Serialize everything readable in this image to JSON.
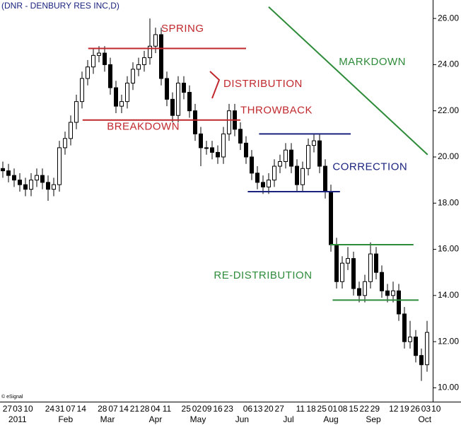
{
  "chart_data": {
    "type": "candlestick",
    "title": "(DNR - DENBURY RES INC,D)",
    "credit": "© eSignal",
    "ylim": [
      9.4,
      26.8
    ],
    "yticks": [
      {
        "value": 10,
        "label": "10.00"
      },
      {
        "value": 12,
        "label": "12.00"
      },
      {
        "value": 14,
        "label": "14.00"
      },
      {
        "value": 16,
        "label": "16.00"
      },
      {
        "value": 18,
        "label": "18.00"
      },
      {
        "value": 20,
        "label": "20.00"
      },
      {
        "value": 22,
        "label": "22.00"
      },
      {
        "value": 24,
        "label": "24.00"
      },
      {
        "value": 26,
        "label": "26.00"
      }
    ],
    "open": [
      19.5,
      19.4,
      19.2,
      19.0,
      18.8,
      18.6,
      19.0,
      19.2,
      18.9,
      18.6,
      18.8,
      20.4,
      20.8,
      21.5,
      22.4,
      23.4,
      23.9,
      24.4,
      24.5,
      24.0,
      23.0,
      22.2,
      22.4,
      23.2,
      23.8,
      24.0,
      24.3,
      24.8,
      25.3,
      23.4,
      22.5,
      21.8,
      23.2,
      22.8,
      22.0,
      21.0,
      20.4,
      20.4,
      20.2,
      20.0,
      21.0,
      22.0,
      21.2,
      20.6,
      20.0,
      19.3,
      18.9,
      18.7,
      19.0,
      19.6,
      19.8,
      20.3,
      19.6,
      18.8,
      19.5,
      20.5,
      20.7,
      19.6,
      18.5,
      16.2,
      14.6,
      15.4,
      15.6,
      14.3,
      14.0,
      14.6,
      15.8,
      15.0,
      14.2,
      14.0,
      14.2,
      13.2,
      12.0,
      12.2,
      11.4,
      11.0
    ],
    "high": [
      19.8,
      19.7,
      19.5,
      19.3,
      19.1,
      19.3,
      19.5,
      19.5,
      19.2,
      19.1,
      20.7,
      21.1,
      21.8,
      22.7,
      23.7,
      24.2,
      24.7,
      24.8,
      24.8,
      24.3,
      23.3,
      22.7,
      23.5,
      24.1,
      24.3,
      24.6,
      26.0,
      25.6,
      25.6,
      23.7,
      22.8,
      23.5,
      23.5,
      23.1,
      22.3,
      21.3,
      20.7,
      20.7,
      20.5,
      21.3,
      22.3,
      22.3,
      21.5,
      20.9,
      20.3,
      19.6,
      19.2,
      19.3,
      19.9,
      20.1,
      20.6,
      20.6,
      19.9,
      19.8,
      20.8,
      21.0,
      21.0,
      19.9,
      18.8,
      16.5,
      15.7,
      16.1,
      15.9,
      14.6,
      14.9,
      16.3,
      16.1,
      15.3,
      14.5,
      14.6,
      14.5,
      13.5,
      12.9,
      12.5,
      11.7,
      12.9
    ],
    "low": [
      19.1,
      18.9,
      18.7,
      18.5,
      18.3,
      18.3,
      18.7,
      18.6,
      18.1,
      18.3,
      18.5,
      20.1,
      20.5,
      21.2,
      22.1,
      23.1,
      23.6,
      24.1,
      23.7,
      22.7,
      21.9,
      21.9,
      22.1,
      22.9,
      23.5,
      23.7,
      24.0,
      24.5,
      23.1,
      22.2,
      21.5,
      21.5,
      22.5,
      21.7,
      20.7,
      19.6,
      20.1,
      19.9,
      19.7,
      19.7,
      20.7,
      20.9,
      20.3,
      19.7,
      19.0,
      18.6,
      18.4,
      18.4,
      18.7,
      19.3,
      19.5,
      19.3,
      18.5,
      18.5,
      19.2,
      20.2,
      19.3,
      18.2,
      15.9,
      14.3,
      14.3,
      15.1,
      14.0,
      13.7,
      13.7,
      14.3,
      14.7,
      13.9,
      13.7,
      13.7,
      12.9,
      11.7,
      11.7,
      11.1,
      10.3,
      10.7
    ],
    "close": [
      19.4,
      19.2,
      19.0,
      18.8,
      18.6,
      19.0,
      19.2,
      18.9,
      18.6,
      18.8,
      20.4,
      20.8,
      21.5,
      22.4,
      23.4,
      23.9,
      24.4,
      24.5,
      24.0,
      23.0,
      22.2,
      22.4,
      23.2,
      23.8,
      24.0,
      24.3,
      24.8,
      25.3,
      23.4,
      22.5,
      21.8,
      23.2,
      22.8,
      22.0,
      21.0,
      20.4,
      20.4,
      20.2,
      20.0,
      21.0,
      22.0,
      21.2,
      20.6,
      20.0,
      19.3,
      18.9,
      18.7,
      19.0,
      19.6,
      19.8,
      20.3,
      19.6,
      18.8,
      19.5,
      20.5,
      20.7,
      19.6,
      18.5,
      16.2,
      14.6,
      15.4,
      15.6,
      14.3,
      14.0,
      14.6,
      15.8,
      15.0,
      14.2,
      14.0,
      14.2,
      13.2,
      12.0,
      12.2,
      11.4,
      11.0,
      12.4
    ],
    "day_labels": [
      {
        "at": 0.8,
        "label": "27"
      },
      {
        "at": 2.6,
        "label": "03"
      },
      {
        "at": 4.5,
        "label": "10"
      },
      {
        "at": 8.3,
        "label": "24"
      },
      {
        "at": 10.1,
        "label": "31"
      },
      {
        "at": 12.0,
        "label": "07"
      },
      {
        "at": 13.9,
        "label": "14"
      },
      {
        "at": 17.6,
        "label": "28"
      },
      {
        "at": 19.5,
        "label": "07"
      },
      {
        "at": 21.4,
        "label": "14"
      },
      {
        "at": 23.3,
        "label": "21"
      },
      {
        "at": 25.1,
        "label": "28"
      },
      {
        "at": 27.0,
        "label": "04"
      },
      {
        "at": 29.0,
        "label": "11"
      },
      {
        "at": 32.4,
        "label": "25"
      },
      {
        "at": 34.3,
        "label": "02"
      },
      {
        "at": 36.1,
        "label": "09"
      },
      {
        "at": 38.0,
        "label": "16"
      },
      {
        "at": 39.9,
        "label": "23"
      },
      {
        "at": 43.3,
        "label": "06"
      },
      {
        "at": 45.1,
        "label": "13"
      },
      {
        "at": 47.0,
        "label": "20"
      },
      {
        "at": 48.9,
        "label": "27"
      },
      {
        "at": 52.6,
        "label": "11"
      },
      {
        "at": 54.5,
        "label": "18"
      },
      {
        "at": 56.4,
        "label": "25"
      },
      {
        "at": 58.3,
        "label": "01"
      },
      {
        "at": 60.1,
        "label": "08"
      },
      {
        "at": 62.0,
        "label": "15"
      },
      {
        "at": 63.9,
        "label": "22"
      },
      {
        "at": 65.8,
        "label": "29"
      },
      {
        "at": 69.1,
        "label": "12"
      },
      {
        "at": 71.0,
        "label": "19"
      },
      {
        "at": 72.9,
        "label": "26"
      },
      {
        "at": 74.8,
        "label": "03"
      },
      {
        "at": 76.6,
        "label": "10"
      }
    ],
    "month_labels": [
      {
        "at": 2.6,
        "label": "2011"
      },
      {
        "at": 11.1,
        "label": "Feb"
      },
      {
        "at": 18.5,
        "label": "Mar"
      },
      {
        "at": 27.0,
        "label": "Apr"
      },
      {
        "at": 34.5,
        "label": "May"
      },
      {
        "at": 42.3,
        "label": "Jun"
      },
      {
        "at": 50.5,
        "label": "Jul"
      },
      {
        "at": 58.0,
        "label": "Aug"
      },
      {
        "at": 65.5,
        "label": "Sep"
      },
      {
        "at": 74.6,
        "label": "Oct"
      }
    ],
    "levels": [
      {
        "value": 24.7,
        "from": 15.1,
        "to": 43.0,
        "color": "#c0282d"
      },
      {
        "value": 21.6,
        "from": 14.1,
        "to": 42.0,
        "color": "#c0282d"
      },
      {
        "value": 21.0,
        "from": 45.3,
        "to": 61.5,
        "color": "#1a237e"
      },
      {
        "value": 18.5,
        "from": 43.3,
        "to": 59.6,
        "color": "#1a237e"
      },
      {
        "value": 16.2,
        "from": 57.9,
        "to": 72.6,
        "color": "#2e8b3a"
      },
      {
        "value": 13.8,
        "from": 58.3,
        "to": 73.5,
        "color": "#2e8b3a"
      }
    ],
    "trend": {
      "from": [
        47.0,
        26.5
      ],
      "to": [
        75.1,
        20.1
      ],
      "color": "#2e8b3a"
    },
    "annotations": [
      {
        "text": "SPRING",
        "at": 28.0,
        "price": 25.55,
        "color": "#c0282d"
      },
      {
        "text": "DISTRIBUTION",
        "at": 39.0,
        "price": 23.15,
        "color": "#c0282d"
      },
      {
        "text": "THROWBACK",
        "at": 42.0,
        "price": 22.0,
        "color": "#c0282d"
      },
      {
        "text": "BREAKDOWN",
        "at": 18.4,
        "price": 21.3,
        "color": "#c0282d"
      },
      {
        "text": "MARKDOWN",
        "at": 59.4,
        "price": 24.1,
        "color": "#2e8b3a"
      },
      {
        "text": "CORRECTION",
        "at": 58.3,
        "price": 19.55,
        "color": "#1a237e"
      },
      {
        "text": "RE-DISTRIBUTION",
        "at": 37.3,
        "price": 14.85,
        "color": "#2e8b3a"
      }
    ]
  }
}
